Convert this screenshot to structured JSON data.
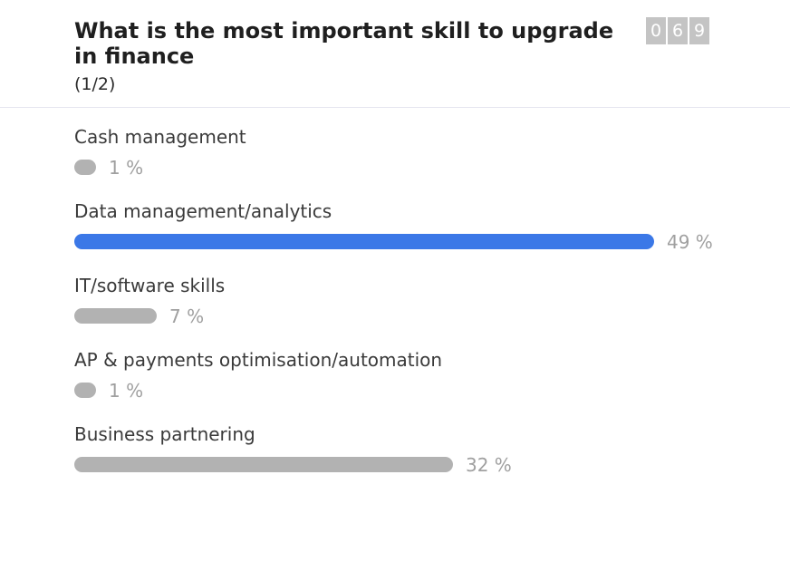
{
  "poll": {
    "question": "What is the most important skill to upgrade in finance",
    "page": "(1/2)",
    "counter_digits": [
      "0",
      "6",
      "9"
    ]
  },
  "options": [
    {
      "label": "Cash management",
      "percent": 1,
      "percent_label": "1 %",
      "highlighted": false
    },
    {
      "label": "Data management/analytics",
      "percent": 49,
      "percent_label": "49 %",
      "highlighted": true
    },
    {
      "label": "IT/software skills",
      "percent": 7,
      "percent_label": "7 %",
      "highlighted": false
    },
    {
      "label": "AP & payments optimisation/automation",
      "percent": 1,
      "percent_label": "1 %",
      "highlighted": false
    },
    {
      "label": "Business partnering",
      "percent": 32,
      "percent_label": "32 %",
      "highlighted": false
    }
  ],
  "colors": {
    "highlight": "#3b78e7",
    "bar": "#b2b2b2",
    "counter_bg": "#c4c4c4"
  }
}
